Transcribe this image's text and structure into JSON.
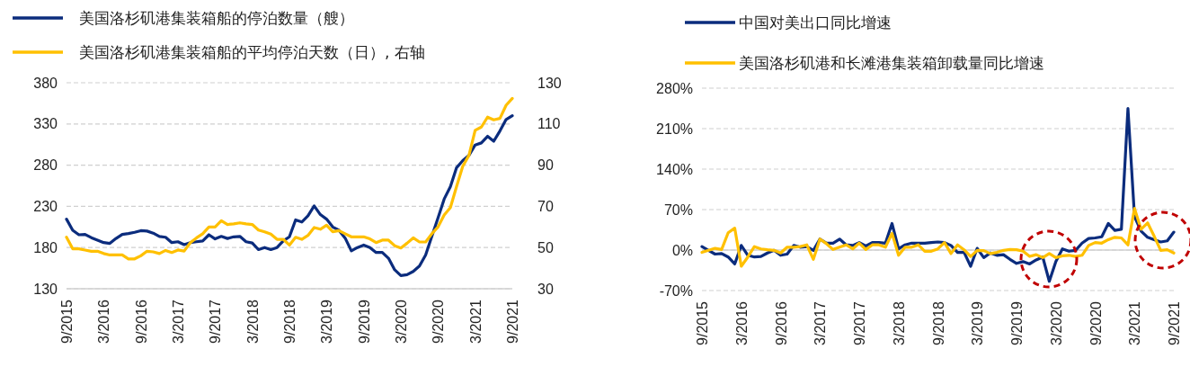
{
  "chart_data": [
    {
      "type": "line",
      "categories": [
        "9/2015",
        null,
        null,
        null,
        null,
        null,
        "3/2016",
        null,
        null,
        null,
        null,
        null,
        "9/2016",
        null,
        null,
        null,
        null,
        null,
        "3/2017",
        null,
        null,
        null,
        null,
        null,
        "9/2017",
        null,
        null,
        null,
        null,
        null,
        "3/2018",
        null,
        null,
        null,
        null,
        null,
        "9/2018",
        null,
        null,
        null,
        null,
        null,
        "3/2019",
        null,
        null,
        null,
        null,
        null,
        "9/2019",
        null,
        null,
        null,
        null,
        null,
        "3/2020",
        null,
        null,
        null,
        null,
        null,
        "9/2020",
        null,
        null,
        null,
        null,
        null,
        "3/2021",
        null,
        null,
        null,
        null,
        null,
        "9/2021"
      ],
      "series": [
        {
          "name": "美国洛杉矶港集装箱船的停泊数量（艘）",
          "color": "#0b2c7d",
          "values": [
            214.5,
            201,
            195.5,
            196,
            192,
            189,
            186,
            185,
            191,
            196,
            197,
            198.5,
            200.5,
            200,
            197.5,
            193.5,
            192.5,
            186,
            187,
            183.5,
            186,
            187,
            188,
            195.5,
            190.5,
            193.5,
            191,
            193,
            193.5,
            187,
            185.5,
            177.5,
            180,
            177.5,
            180,
            188,
            193,
            213.5,
            211,
            218.5,
            230.5,
            220,
            214.5,
            205,
            201,
            191.5,
            176,
            180,
            183,
            180,
            174,
            174,
            167,
            153,
            146,
            147,
            151,
            157.5,
            171,
            193.5,
            216,
            239,
            254,
            277,
            285.5,
            292,
            304.5,
            307,
            315,
            309,
            321.5,
            335.5,
            340
          ]
        },
        {
          "name": "美国洛杉矶港集装箱船的平均停泊天数（日）, 右轴",
          "color": "#ffc000",
          "axis": "y2",
          "values": [
            55,
            49.4,
            49.4,
            48.8,
            48.2,
            48.2,
            47.1,
            46.4,
            46.4,
            46.4,
            44.5,
            44.5,
            46,
            48.2,
            47.9,
            47.1,
            48.6,
            47.6,
            48.8,
            48.3,
            52.4,
            54.7,
            56.7,
            60,
            60,
            63,
            61.2,
            61.5,
            62,
            61.5,
            61.2,
            58.5,
            57.6,
            56.5,
            54,
            54,
            51.2,
            55,
            54,
            55.9,
            59.7,
            58.9,
            60.8,
            57.7,
            58.2,
            56.7,
            55.2,
            55.2,
            55.2,
            54.2,
            52.4,
            53.6,
            53.6,
            50.9,
            49.8,
            52.1,
            54.7,
            52.7,
            52.7,
            56.7,
            60,
            65.8,
            69.4,
            79.7,
            89.5,
            94.8,
            106.9,
            108.5,
            113.3,
            112,
            112.7,
            119.1,
            122.4
          ]
        }
      ],
      "ylim": [
        130,
        380
      ],
      "yticks": [
        130,
        180,
        230,
        280,
        330,
        380
      ],
      "y2lim": [
        30,
        130
      ],
      "y2ticks": [
        30,
        50,
        70,
        90,
        110,
        130
      ],
      "grid": "y",
      "legend": "top left"
    },
    {
      "type": "line",
      "categories": [
        "9/2015",
        null,
        null,
        null,
        null,
        null,
        "3/2016",
        null,
        null,
        null,
        null,
        null,
        "9/2016",
        null,
        null,
        null,
        null,
        null,
        "3/2017",
        null,
        null,
        null,
        null,
        null,
        "9/2017",
        null,
        null,
        null,
        null,
        null,
        "3/2018",
        null,
        null,
        null,
        null,
        null,
        "9/2018",
        null,
        null,
        null,
        null,
        null,
        "3/2019",
        null,
        null,
        null,
        null,
        null,
        "9/2019",
        null,
        null,
        null,
        null,
        null,
        "3/2020",
        null,
        null,
        null,
        null,
        null,
        "9/2020",
        null,
        null,
        null,
        null,
        null,
        "3/2021",
        null,
        null,
        null,
        null,
        null,
        "9/2021"
      ],
      "series": [
        {
          "name": "中国对美出口同比增速",
          "color": "#0b2c7d",
          "values": [
            6,
            -0.5,
            -7,
            -6,
            -12,
            -24,
            8,
            -9,
            -12,
            -11,
            -5,
            -0.5,
            -9,
            -7,
            8,
            5,
            6,
            -0.5,
            19,
            12,
            12,
            19,
            9,
            8,
            13,
            7,
            13,
            13,
            12,
            46,
            2,
            9,
            12,
            12,
            12,
            13,
            14,
            13,
            8,
            -4,
            -4,
            -28,
            3,
            -13,
            -5,
            -9,
            -8,
            -16,
            -23,
            -20,
            -24,
            -17,
            -12,
            -54,
            -20,
            2,
            -2,
            -0.5,
            12,
            20,
            21,
            23,
            46,
            34,
            36,
            245,
            58,
            33,
            22,
            18,
            14,
            16,
            31
          ]
        },
        {
          "name": "美国洛杉矶港和长滩港集装箱卸载量同比增速",
          "color": "#ffc000",
          "values": [
            -4,
            -0.5,
            3,
            1,
            30,
            38,
            -28,
            -12,
            6,
            2,
            0.5,
            -0.5,
            -5,
            5,
            5,
            6,
            9,
            -16,
            19,
            11,
            1,
            5,
            9,
            2,
            12,
            1,
            9,
            9,
            5,
            29,
            -9,
            5,
            5,
            9,
            -2,
            -2,
            2,
            13,
            -6,
            9,
            0.5,
            -11,
            -0.5,
            -1,
            -6,
            -4,
            -0.5,
            1,
            0.5,
            -2,
            -11,
            -8,
            -13,
            -6,
            -13,
            -10,
            -9,
            -11,
            -9,
            8,
            13,
            12,
            18,
            22,
            21,
            9,
            72,
            36,
            47,
            24,
            -0.5,
            0.5,
            -5
          ]
        }
      ],
      "ylim": [
        -70,
        280
      ],
      "yticks": [
        {
          "value": -70,
          "label": "-70%"
        },
        {
          "value": 0,
          "label": "0%"
        },
        {
          "value": 70,
          "label": "70%"
        },
        {
          "value": 140,
          "label": "140%"
        },
        {
          "value": 210,
          "label": "210%"
        },
        {
          "value": 280,
          "label": "280%"
        }
      ],
      "grid": "y",
      "legend": "top left"
    }
  ]
}
